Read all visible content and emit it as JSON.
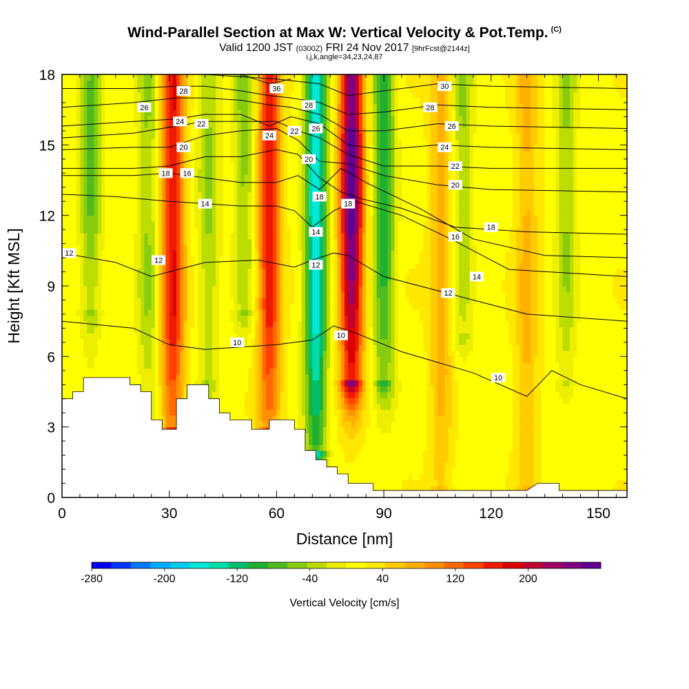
{
  "header": {
    "title": "Wind-Parallel Section at Max W: Vertical Velocity & Pot.Temp.",
    "title_tag": "(C)",
    "valid_prefix": "Valid 1200 JST",
    "valid_utc": "(0300Z)",
    "valid_date": "FRI 24 Nov 2017",
    "forecast": "[9hrFcst@2144z]",
    "params": "i,j,k,angle=34,23,24,87"
  },
  "chart_data": {
    "type": "heatmap",
    "xlabel": "Distance [nm]",
    "ylabel": "Height [Kft MSL]",
    "xlim": [
      0,
      158
    ],
    "ylim": [
      0,
      18
    ],
    "x_ticks": [
      0,
      30,
      60,
      90,
      120,
      150
    ],
    "y_ticks": [
      0,
      3,
      6,
      9,
      12,
      15,
      18
    ],
    "colorbar": {
      "label": "Vertical Velocity [cm/s]",
      "range": [
        -280,
        280
      ],
      "tick_values": [
        -280,
        -200,
        -120,
        -40,
        40,
        120,
        200
      ],
      "colors": [
        "#0000ee",
        "#0033ff",
        "#0077ff",
        "#00aaff",
        "#00ccee",
        "#00e8d8",
        "#00ddaa",
        "#00c070",
        "#20b030",
        "#50bb20",
        "#88cc10",
        "#bbdd00",
        "#eeee00",
        "#ffff00",
        "#ffe800",
        "#ffcc00",
        "#ffb000",
        "#ff9000",
        "#ff6a00",
        "#ff4000",
        "#ee1a00",
        "#dd0000",
        "#c00030",
        "#a00060",
        "#800080",
        "#600090"
      ]
    },
    "updraft_columns": [
      {
        "x": 31,
        "w": 160,
        "zmin": 2.9
      },
      {
        "x": 58,
        "w": 150,
        "zmin": 3.0
      },
      {
        "x": 81,
        "w": 250,
        "zmin": 5.0
      },
      {
        "x": 106,
        "w": 60,
        "zmin": 0.5
      },
      {
        "x": 130,
        "w": 55,
        "zmin": 0.5
      }
    ],
    "downdraft_columns": [
      {
        "x": 8,
        "w": -90,
        "zmin": 8.0
      },
      {
        "x": 24,
        "w": -60,
        "zmin": 3.0
      },
      {
        "x": 41,
        "w": -60,
        "zmin": 5.0
      },
      {
        "x": 51,
        "w": -70,
        "zmin": 8.0
      },
      {
        "x": 71,
        "w": -180,
        "zmin": 2.0
      },
      {
        "x": 90,
        "w": -120,
        "zmin": 5.0
      },
      {
        "x": 112,
        "w": -60,
        "zmin": 7.0
      },
      {
        "x": 141,
        "w": -60,
        "zmin": 5.0
      }
    ],
    "terrain": [
      [
        0,
        4.2
      ],
      [
        3,
        4.2
      ],
      [
        3,
        4.5
      ],
      [
        6,
        4.5
      ],
      [
        6,
        5.1
      ],
      [
        19,
        5.1
      ],
      [
        19,
        4.8
      ],
      [
        22,
        4.8
      ],
      [
        22,
        4.5
      ],
      [
        25,
        4.5
      ],
      [
        25,
        3.3
      ],
      [
        28,
        3.3
      ],
      [
        28,
        2.9
      ],
      [
        32,
        2.9
      ],
      [
        32,
        4.2
      ],
      [
        35,
        4.2
      ],
      [
        35,
        4.8
      ],
      [
        41,
        4.8
      ],
      [
        41,
        4.2
      ],
      [
        44,
        4.2
      ],
      [
        44,
        3.6
      ],
      [
        47,
        3.6
      ],
      [
        47,
        3.3
      ],
      [
        53,
        3.3
      ],
      [
        53,
        2.9
      ],
      [
        58,
        2.9
      ],
      [
        58,
        3.3
      ],
      [
        65,
        3.3
      ],
      [
        65,
        2.9
      ],
      [
        68,
        2.9
      ],
      [
        68,
        2.0
      ],
      [
        71,
        2.0
      ],
      [
        71,
        1.6
      ],
      [
        74,
        1.6
      ],
      [
        74,
        1.3
      ],
      [
        77,
        1.3
      ],
      [
        77,
        1.0
      ],
      [
        80,
        1.0
      ],
      [
        80,
        0.6
      ],
      [
        87,
        0.6
      ],
      [
        87,
        0.3
      ],
      [
        130,
        0.3
      ],
      [
        133,
        0.6
      ],
      [
        139,
        0.6
      ],
      [
        139,
        0.3
      ],
      [
        158,
        0.3
      ]
    ],
    "theta_contours": [
      {
        "label": "10",
        "pts": [
          [
            0,
            7.5
          ],
          [
            20,
            7.2
          ],
          [
            30,
            6.5
          ],
          [
            40,
            6.3
          ],
          [
            50,
            6.4
          ],
          [
            60,
            6.5
          ],
          [
            70,
            6.7
          ],
          [
            76,
            7.3
          ],
          [
            82,
            7.0
          ],
          [
            95,
            6.2
          ],
          [
            115,
            5.3
          ],
          [
            130,
            4.3
          ],
          [
            137,
            5.4
          ],
          [
            145,
            4.8
          ],
          [
            158,
            4.2
          ]
        ],
        "labels": [
          [
            49,
            6.6
          ],
          [
            78,
            6.9
          ],
          [
            122,
            5.1
          ]
        ]
      },
      {
        "label": "12",
        "pts": [
          [
            0,
            10.4
          ],
          [
            15,
            10.0
          ],
          [
            25,
            9.4
          ],
          [
            30,
            9.6
          ],
          [
            40,
            10.0
          ],
          [
            55,
            10.1
          ],
          [
            65,
            9.8
          ],
          [
            70,
            10.1
          ],
          [
            76,
            10.4
          ],
          [
            80,
            10.3
          ],
          [
            90,
            9.4
          ],
          [
            110,
            8.6
          ],
          [
            130,
            7.8
          ],
          [
            158,
            7.5
          ]
        ],
        "labels": [
          [
            2,
            10.4
          ],
          [
            27,
            10.1
          ],
          [
            71,
            9.9
          ],
          [
            108,
            8.7
          ]
        ]
      },
      {
        "label": "14",
        "pts": [
          [
            0,
            12.9
          ],
          [
            15,
            12.8
          ],
          [
            30,
            12.6
          ],
          [
            40,
            12.5
          ],
          [
            50,
            12.4
          ],
          [
            60,
            12.4
          ],
          [
            65,
            12.2
          ],
          [
            70,
            11.5
          ],
          [
            76,
            12.2
          ],
          [
            82,
            12.6
          ],
          [
            95,
            12.0
          ],
          [
            110,
            10.9
          ],
          [
            125,
            9.7
          ],
          [
            158,
            9.4
          ]
        ],
        "labels": [
          [
            40,
            12.5
          ],
          [
            71,
            11.3
          ],
          [
            116,
            9.4
          ]
        ]
      },
      {
        "label": "16",
        "pts": [
          [
            0,
            13.7
          ],
          [
            20,
            13.7
          ],
          [
            30,
            13.8
          ],
          [
            40,
            13.6
          ],
          [
            50,
            13.4
          ],
          [
            60,
            13.4
          ],
          [
            66,
            13.7
          ],
          [
            72,
            13.1
          ],
          [
            78,
            14.0
          ],
          [
            85,
            13.4
          ],
          [
            100,
            12.3
          ],
          [
            115,
            11.0
          ],
          [
            135,
            10.3
          ],
          [
            158,
            10.2
          ]
        ],
        "labels": [
          [
            35,
            13.8
          ],
          [
            110,
            11.1
          ]
        ]
      },
      {
        "label": "18",
        "pts": [
          [
            0,
            14.0
          ],
          [
            20,
            14.0
          ],
          [
            30,
            14.1
          ],
          [
            40,
            14.5
          ],
          [
            50,
            14.5
          ],
          [
            60,
            14.8
          ],
          [
            66,
            14.6
          ],
          [
            72,
            13.6
          ],
          [
            78,
            13.0
          ],
          [
            84,
            12.7
          ],
          [
            95,
            12.3
          ],
          [
            110,
            11.5
          ],
          [
            130,
            11.3
          ],
          [
            158,
            11.2
          ]
        ],
        "labels": [
          [
            29,
            13.8
          ],
          [
            72,
            12.8
          ],
          [
            80,
            12.5
          ],
          [
            120,
            11.5
          ]
        ]
      },
      {
        "label": "20",
        "pts": [
          [
            0,
            14.8
          ],
          [
            20,
            14.9
          ],
          [
            30,
            14.9
          ],
          [
            40,
            15.4
          ],
          [
            50,
            15.6
          ],
          [
            60,
            15.7
          ],
          [
            66,
            15.2
          ],
          [
            72,
            14.3
          ],
          [
            80,
            14.2
          ],
          [
            90,
            13.7
          ],
          [
            105,
            13.3
          ],
          [
            120,
            13.1
          ],
          [
            158,
            13.0
          ]
        ],
        "labels": [
          [
            34,
            14.9
          ],
          [
            69,
            14.4
          ],
          [
            110,
            13.3
          ]
        ]
      },
      {
        "label": "22",
        "pts": [
          [
            0,
            15.3
          ],
          [
            20,
            15.5
          ],
          [
            32,
            15.8
          ],
          [
            40,
            16.0
          ],
          [
            50,
            16.0
          ],
          [
            60,
            16.0
          ],
          [
            66,
            15.6
          ],
          [
            72,
            15.3
          ],
          [
            80,
            14.6
          ],
          [
            90,
            14.1
          ],
          [
            105,
            14.1
          ],
          [
            120,
            14.0
          ],
          [
            158,
            14.0
          ]
        ],
        "labels": [
          [
            39,
            15.9
          ],
          [
            65,
            15.6
          ],
          [
            110,
            14.1
          ]
        ]
      },
      {
        "label": "24",
        "pts": [
          [
            0,
            15.8
          ],
          [
            20,
            16.0
          ],
          [
            32,
            16.1
          ],
          [
            40,
            16.3
          ],
          [
            50,
            16.3
          ],
          [
            58,
            15.8
          ],
          [
            64,
            16.2
          ],
          [
            72,
            15.9
          ],
          [
            80,
            15.0
          ],
          [
            90,
            14.8
          ],
          [
            105,
            15.0
          ],
          [
            120,
            14.9
          ],
          [
            158,
            14.8
          ]
        ],
        "labels": [
          [
            33,
            16.0
          ],
          [
            58,
            15.4
          ],
          [
            107,
            14.9
          ]
        ]
      },
      {
        "label": "26",
        "pts": [
          [
            0,
            16.6
          ],
          [
            20,
            16.8
          ],
          [
            32,
            17.0
          ],
          [
            40,
            17.0
          ],
          [
            50,
            16.9
          ],
          [
            58,
            16.7
          ],
          [
            64,
            16.6
          ],
          [
            72,
            16.3
          ],
          [
            80,
            15.6
          ],
          [
            90,
            15.6
          ],
          [
            105,
            15.9
          ],
          [
            120,
            15.8
          ],
          [
            158,
            15.7
          ]
        ],
        "labels": [
          [
            23,
            16.6
          ],
          [
            71,
            15.7
          ],
          [
            109,
            15.8
          ]
        ]
      },
      {
        "label": "28",
        "pts": [
          [
            0,
            17.4
          ],
          [
            20,
            17.4
          ],
          [
            32,
            17.5
          ],
          [
            40,
            17.5
          ],
          [
            50,
            17.3
          ],
          [
            58,
            17.1
          ],
          [
            64,
            17.0
          ],
          [
            72,
            16.8
          ],
          [
            80,
            16.3
          ],
          [
            90,
            16.4
          ],
          [
            105,
            16.7
          ],
          [
            120,
            16.6
          ],
          [
            158,
            16.5
          ]
        ],
        "labels": [
          [
            34,
            17.3
          ],
          [
            69,
            16.7
          ],
          [
            103,
            16.6
          ]
        ]
      },
      {
        "label": "30",
        "pts": [
          [
            0,
            18.0
          ],
          [
            20,
            18.0
          ],
          [
            40,
            18.0
          ],
          [
            60,
            17.8
          ],
          [
            72,
            17.6
          ],
          [
            80,
            17.1
          ],
          [
            90,
            17.3
          ],
          [
            105,
            17.6
          ],
          [
            120,
            17.5
          ],
          [
            158,
            17.4
          ]
        ],
        "labels": [
          [
            107,
            17.5
          ]
        ]
      },
      {
        "label": "36",
        "pts": [
          [
            50,
            18.0
          ],
          [
            58,
            17.6
          ],
          [
            64,
            17.8
          ]
        ],
        "labels": [
          [
            60,
            17.4
          ]
        ]
      }
    ]
  }
}
